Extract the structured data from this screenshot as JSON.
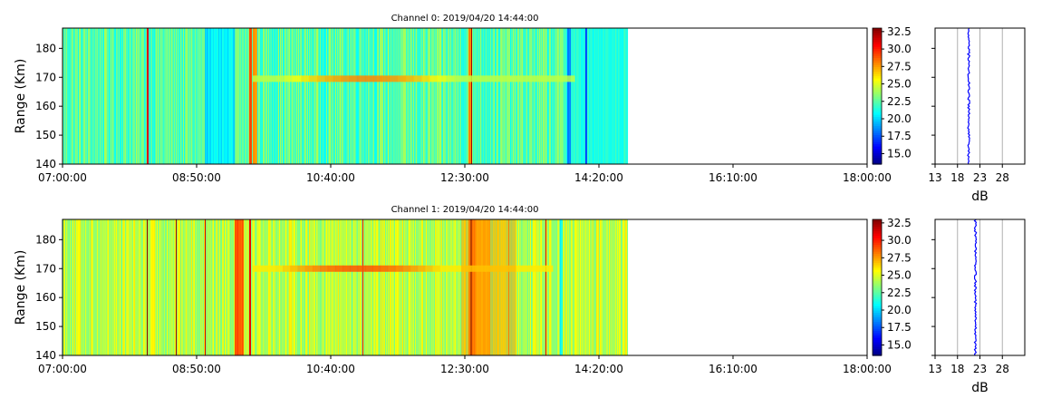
{
  "colors": {
    "background": "#ffffff",
    "axis": "#000000",
    "profile_line": "#0000ff",
    "profile_grid": "#b0b0b0",
    "colormap": "jet"
  },
  "chart_data": [
    {
      "type": "heatmap",
      "title": "Channel 0: 2019/04/20 14:44:00",
      "ylabel": "Range (Km)",
      "xlabel": "",
      "x_tick_labels": [
        "07:00:00",
        "08:50:00",
        "10:40:00",
        "12:30:00",
        "14:20:00",
        "16:10:00",
        "18:00:00"
      ],
      "x_range_hours": [
        7.0,
        18.0
      ],
      "data_end_hours": 14.7333,
      "ylim": [
        140,
        187
      ],
      "y_ticks": [
        140,
        150,
        160,
        170,
        180
      ],
      "colorbar": {
        "range_db": [
          13.5,
          33.0
        ],
        "ticks": [
          "15.0",
          "17.5",
          "20.0",
          "22.5",
          "25.0",
          "27.5",
          "30.0",
          "32.5"
        ]
      },
      "background_db": 22.5,
      "echo": {
        "range_km": 169.5,
        "start_hours": 9.6,
        "end_hours": 14.0,
        "peak_db": 28.0
      },
      "profile": {
        "xlabel": "dB",
        "x_ticks": [
          13,
          18,
          23,
          28
        ],
        "xlim": [
          13,
          33
        ],
        "value_db": 20.5
      }
    },
    {
      "type": "heatmap",
      "title": "Channel 1: 2019/04/20 14:44:00",
      "ylabel": "Range (Km)",
      "xlabel": "",
      "x_tick_labels": [
        "07:00:00",
        "08:50:00",
        "10:40:00",
        "12:30:00",
        "14:20:00",
        "16:10:00",
        "18:00:00"
      ],
      "x_range_hours": [
        7.0,
        18.0
      ],
      "data_end_hours": 14.7333,
      "ylim": [
        140,
        187
      ],
      "y_ticks": [
        140,
        150,
        160,
        170,
        180
      ],
      "colorbar": {
        "range_db": [
          13.5,
          33.0
        ],
        "ticks": [
          "15.0",
          "17.5",
          "20.0",
          "22.5",
          "25.0",
          "27.5",
          "30.0",
          "32.5"
        ]
      },
      "background_db": 24.5,
      "echo": {
        "range_km": 170.0,
        "start_hours": 9.6,
        "end_hours": 13.7,
        "peak_db": 29.0
      },
      "profile": {
        "xlabel": "dB",
        "x_ticks": [
          13,
          18,
          23,
          28
        ],
        "xlim": [
          13,
          33
        ],
        "value_db": 22.0
      }
    }
  ]
}
